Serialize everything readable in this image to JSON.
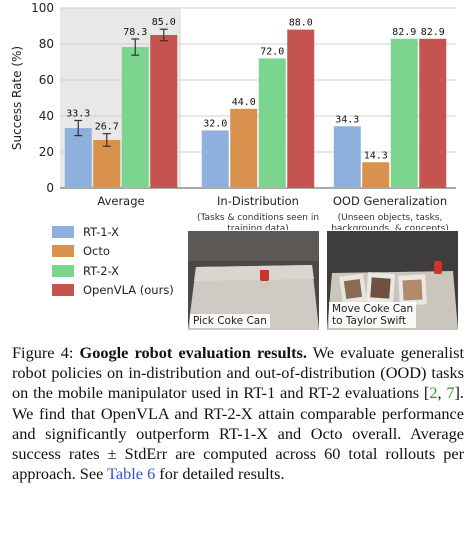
{
  "chart_data": {
    "type": "bar",
    "ylabel": "Success Rate (%)",
    "ylim": [
      0,
      100
    ],
    "yticks": [
      0,
      20,
      40,
      60,
      80,
      100
    ],
    "grid": "horizontal",
    "legend_placement": "bottom-left",
    "categories": [
      "Average",
      "In-Distribution",
      "OOD Generalization"
    ],
    "category_notes": [
      "",
      "(Tasks & conditions seen in\ntraining data)",
      "(Unseen objects, tasks,\nbackgrounds, & concepts)"
    ],
    "series": [
      {
        "name": "RT-1-X",
        "values": [
          33.3,
          32.0,
          34.3
        ],
        "labels": [
          "33.3",
          "32.0",
          "34.3"
        ],
        "color": "#8fb0dd",
        "err": [
          4.2,
          null,
          null
        ]
      },
      {
        "name": "Octo",
        "values": [
          26.7,
          44.0,
          14.3
        ],
        "labels": [
          "26.7",
          "44.0",
          "14.3"
        ],
        "color": "#d9924e",
        "err": [
          3.5,
          null,
          null
        ]
      },
      {
        "name": "RT-2-X",
        "values": [
          78.3,
          72.0,
          82.9
        ],
        "labels": [
          "78.3",
          "72.0",
          "82.9"
        ],
        "color": "#7cd58e",
        "err": [
          4.5,
          null,
          null
        ]
      },
      {
        "name": "OpenVLA (ours)",
        "values": [
          85.0,
          88.0,
          82.9
        ],
        "labels": [
          "85.0",
          "88.0",
          "82.9"
        ],
        "color": "#c55450",
        "err": [
          3.2,
          null,
          null
        ]
      }
    ]
  },
  "photos": [
    {
      "label": "Pick Coke Can"
    },
    {
      "label": "Move Coke Can\nto Taylor Swift"
    }
  ],
  "caption": {
    "figure_label": "Figure 4:",
    "bold_title": "Google robot evaluation results.",
    "text_part1": " We evaluate generalist robot policies on in-distribution and out-of-distribution (OOD) tasks on the mobile manipulator used in RT-1 and RT-2 evaluations [",
    "ref1": "2",
    "sep": ", ",
    "ref2": "7",
    "text_part2": "]. We find that OpenVLA and RT-2-X attain comparable performance and significantly outperform RT-1-X and Octo overall. Average success rates ± StdErr are computed across 60 total rollouts per approach. See ",
    "link": "Table 6",
    "text_part3": " for detailed results."
  }
}
